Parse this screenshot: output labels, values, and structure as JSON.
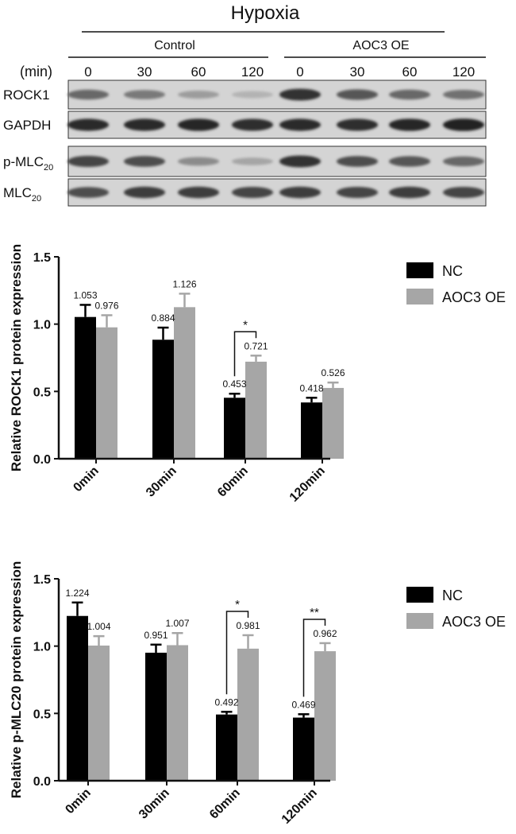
{
  "blot": {
    "title": "Hypoxia",
    "groups": [
      "Control",
      "AOC3 OE"
    ],
    "unit_label": "(min)",
    "lane_labels": [
      "0",
      "30",
      "60",
      "120",
      "0",
      "30",
      "60",
      "120"
    ],
    "rows": [
      {
        "label": "ROCK1",
        "sub": "",
        "intensity": [
          0.55,
          0.45,
          0.25,
          0.12,
          0.85,
          0.65,
          0.55,
          0.5
        ]
      },
      {
        "label": "GAPDH",
        "sub": "",
        "intensity": [
          0.9,
          0.9,
          0.92,
          0.88,
          0.9,
          0.88,
          0.92,
          0.95
        ]
      },
      {
        "label": "p-MLC",
        "sub": "20",
        "intensity": [
          0.75,
          0.7,
          0.35,
          0.2,
          0.85,
          0.7,
          0.65,
          0.55
        ]
      },
      {
        "label": "MLC",
        "sub": "20",
        "intensity": [
          0.7,
          0.8,
          0.8,
          0.75,
          0.8,
          0.75,
          0.8,
          0.75
        ]
      }
    ]
  },
  "chart_data": [
    {
      "type": "bar",
      "categories": [
        "0min",
        "30min",
        "60min",
        "120min"
      ],
      "ylabel": "Relative ROCK1 protein expression",
      "ylim": [
        0,
        1.5
      ],
      "yticks": [
        "0.0",
        "0.5",
        "1.0",
        "1.5"
      ],
      "legend_position": "right",
      "series": [
        {
          "name": "NC",
          "color": "#000000",
          "values": [
            1.053,
            0.884,
            0.453,
            0.418
          ],
          "errors": [
            0.09,
            0.09,
            0.03,
            0.035
          ],
          "labels": [
            "1.053",
            "0.884",
            "0.453",
            "0.418"
          ]
        },
        {
          "name": "AOC3 OE",
          "color": "#a6a6a6",
          "values": [
            0.976,
            1.126,
            0.721,
            0.526
          ],
          "errors": [
            0.09,
            0.1,
            0.045,
            0.04
          ],
          "labels": [
            "0.976",
            "1.126",
            "0.721",
            "0.526"
          ]
        }
      ],
      "significance": [
        {
          "category_index": 2,
          "label": "*"
        }
      ]
    },
    {
      "type": "bar",
      "categories": [
        "0min",
        "30min",
        "60min",
        "120min"
      ],
      "ylabel": "Relative p-MLC20 protein expression",
      "ylim": [
        0,
        1.5
      ],
      "yticks": [
        "0.0",
        "0.5",
        "1.0",
        "1.5"
      ],
      "legend_position": "right",
      "series": [
        {
          "name": "NC",
          "color": "#000000",
          "values": [
            1.224,
            0.951,
            0.492,
            0.469
          ],
          "errors": [
            0.1,
            0.06,
            0.02,
            0.025
          ],
          "labels": [
            "1.224",
            "0.951",
            "0.492",
            "0.469"
          ]
        },
        {
          "name": "AOC3 OE",
          "color": "#a6a6a6",
          "values": [
            1.004,
            1.007,
            0.981,
            0.962
          ],
          "errors": [
            0.07,
            0.09,
            0.1,
            0.06
          ],
          "labels": [
            "1.004",
            "1.007",
            "0.981",
            "0.962"
          ]
        }
      ],
      "significance": [
        {
          "category_index": 2,
          "label": "*"
        },
        {
          "category_index": 3,
          "label": "**"
        }
      ]
    }
  ]
}
